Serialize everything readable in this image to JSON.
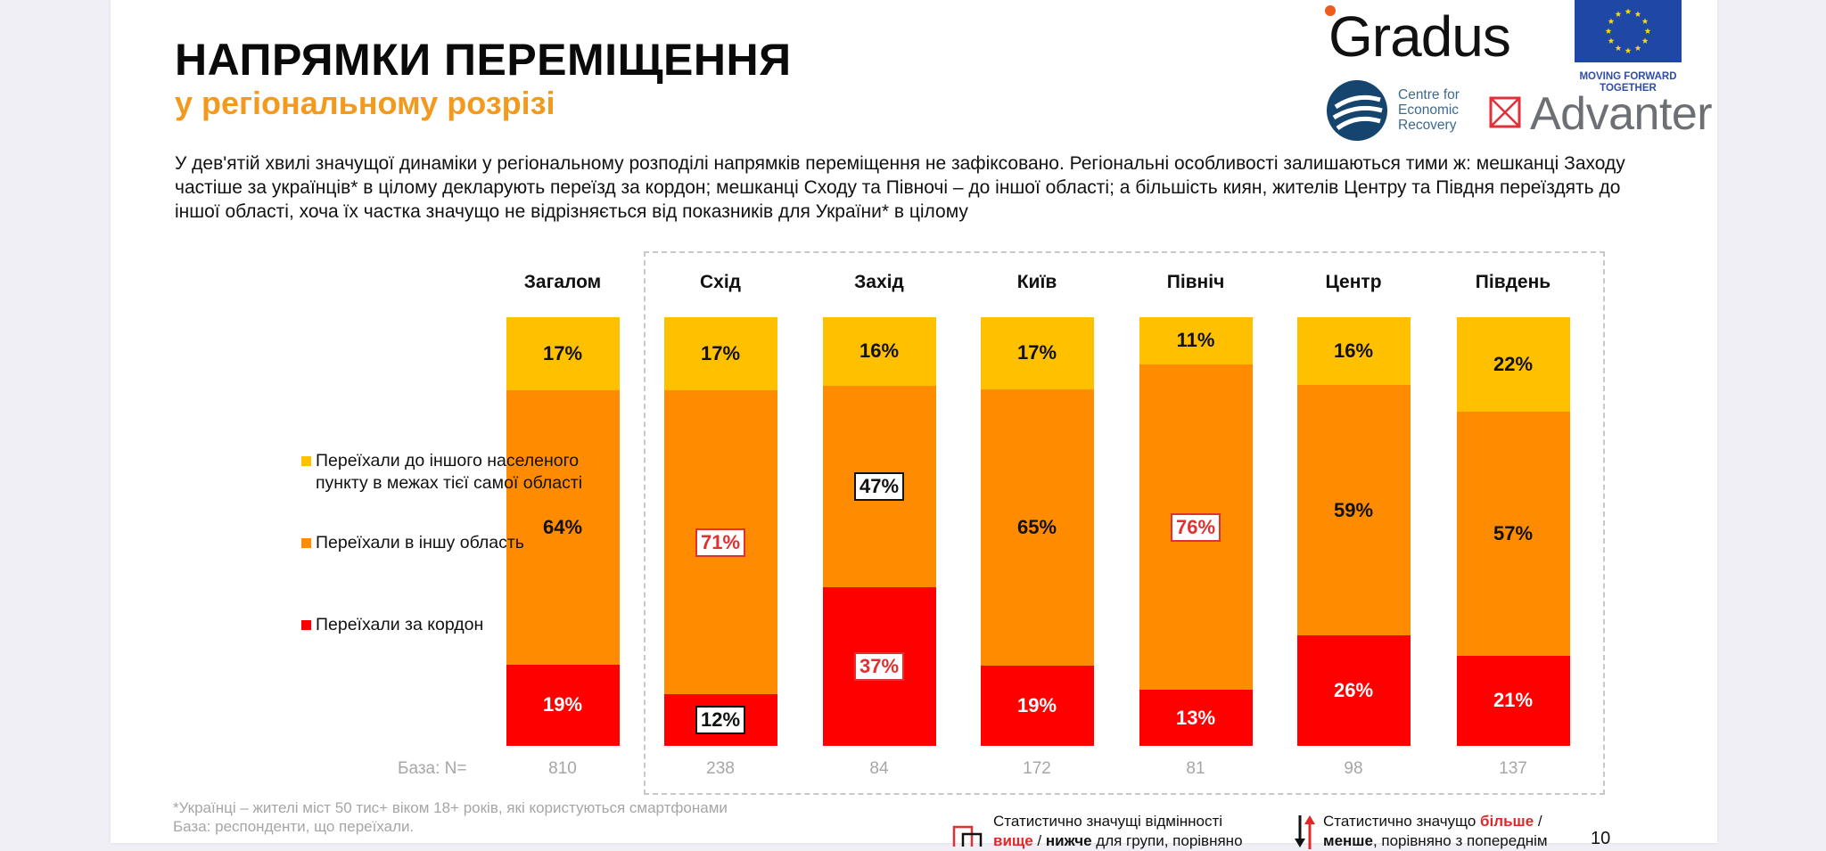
{
  "header": {
    "title": "НАПРЯМКИ ПЕРЕМІЩЕННЯ",
    "subtitle": "у регіональному розрізі",
    "intro": "У дев'ятій хвилі значущої динаміки у регіональному розподілі напрямків переміщення не зафіксовано. Регіональні особливості залишаються тими ж: мешканці Заходу частіше за українців* в цілому декларують переїзд за кордон; мешканці Сходу та Півночі – до іншої області; а більшість киян, жителів Центру та Півдня переїздять до іншої області, хоча їх частка значущо не відрізняється від показників для України* в цілому"
  },
  "logos": {
    "gradus": "Gradus",
    "eu_tagline_1": "MOVING FORWARD",
    "eu_tagline_2": "TOGETHER",
    "cer_line1": "Centre for",
    "cer_line2": "Economic",
    "cer_line3": "Recovery",
    "advanter": "Advanter"
  },
  "colors": {
    "same_oblast": "#ffc000",
    "other_oblast": "#ff8c00",
    "abroad": "#ff0000",
    "accent_orange": "#f39a1e",
    "sig_red": "#e03030"
  },
  "chart_data": {
    "type": "bar",
    "stacked": true,
    "orientation": "vertical",
    "unit": "%",
    "categories": [
      "Загалом",
      "Схід",
      "Захід",
      "Київ",
      "Північ",
      "Центр",
      "Південь"
    ],
    "series": [
      {
        "name": "Переїхали за кордон",
        "key": "abroad",
        "values": [
          19,
          12,
          37,
          19,
          13,
          26,
          21
        ]
      },
      {
        "name": "Переїхали в іншу область",
        "key": "other_oblast",
        "values": [
          64,
          71,
          47,
          65,
          76,
          59,
          57
        ]
      },
      {
        "name": "Переїхали до іншого населеного пункту в межах тієї самої області",
        "key": "same_oblast",
        "values": [
          17,
          17,
          16,
          17,
          11,
          16,
          22
        ]
      }
    ],
    "significance": {
      "abroad": [
        "none",
        "lower",
        "higher",
        "none",
        "none",
        "none",
        "none"
      ],
      "other_oblast": [
        "none",
        "higher",
        "lower",
        "none",
        "higher",
        "none",
        "none"
      ],
      "same_oblast": [
        "none",
        "none",
        "none",
        "none",
        "none",
        "none",
        "none"
      ]
    },
    "base_label": "База: N=",
    "base_n": [
      810,
      238,
      84,
      172,
      81,
      98,
      137
    ],
    "ylim": [
      0,
      100
    ],
    "legend_position": "left",
    "grid": false
  },
  "legend": [
    {
      "label": "Переїхали до іншого населеного пункту в межах тієї самої області"
    },
    {
      "label": "Переїхали в іншу область"
    },
    {
      "label": "Переїхали за кордон"
    }
  ],
  "footer": {
    "note1": "*Українці – жителі міст 50 тис+ віком 18+ років, які користуються смартфонами",
    "note2": "База: респонденти, що переїхали.",
    "sig_box_line1": "Статистично значущі відмінності",
    "sig_box_higher": "вище",
    "sig_box_sep": " / ",
    "sig_box_lower": "нижче",
    "sig_box_rest": " для групи, порівняно",
    "sig_arrow_line1": "Статистично значущо ",
    "sig_arrow_more": "більше",
    "sig_arrow_sep": " /",
    "sig_arrow_less": "менше",
    "sig_arrow_rest": ", порівняно з попереднім",
    "page_number": "10"
  }
}
